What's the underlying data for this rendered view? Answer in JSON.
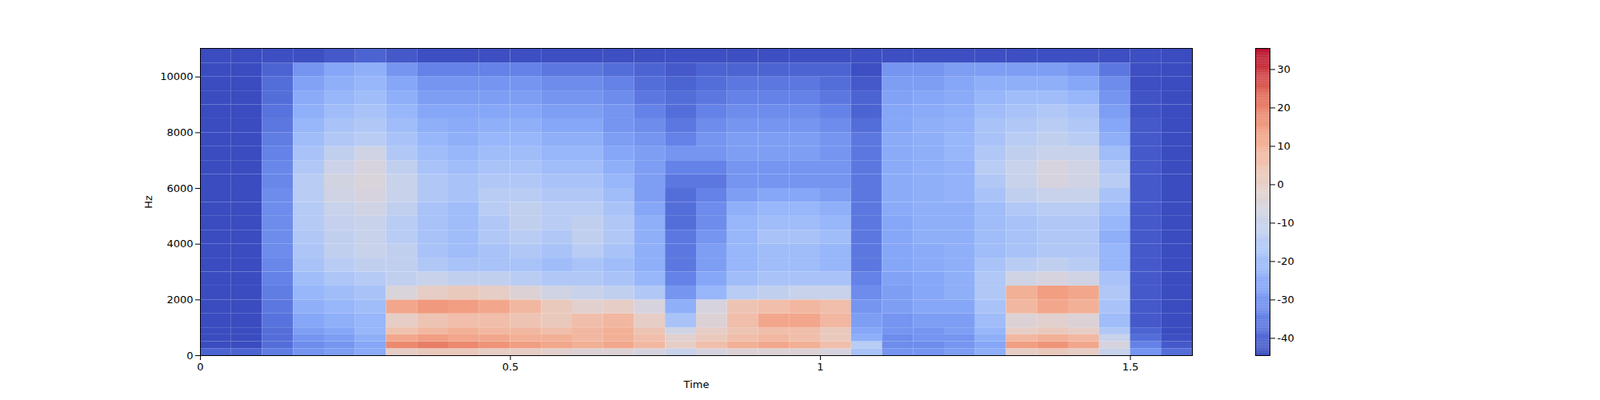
{
  "chart_data": {
    "type": "heatmap",
    "xlabel": "Time",
    "ylabel": "Hz",
    "xlim": [
      0,
      1.6
    ],
    "ylim": [
      0,
      11025
    ],
    "xticks": [
      0,
      0.5,
      1,
      1.5
    ],
    "yticks": [
      0,
      2000,
      4000,
      6000,
      8000,
      10000
    ],
    "color": "coolwarm",
    "colorbar": {
      "range": [
        -44.5,
        35.5
      ],
      "ticks": [
        -40,
        -30,
        -20,
        -10,
        0,
        10,
        20,
        30
      ]
    },
    "x_bins": [
      0,
      0.05,
      0.1,
      0.15,
      0.2,
      0.25,
      0.3,
      0.35,
      0.4,
      0.45,
      0.5,
      0.55,
      0.6,
      0.65,
      0.7,
      0.75,
      0.8,
      0.85,
      0.9,
      0.95,
      1.0,
      1.05,
      1.1,
      1.15,
      1.2,
      1.25,
      1.3,
      1.35,
      1.4,
      1.45,
      1.5,
      1.55,
      1.6
    ],
    "y_bins": [
      0,
      250,
      500,
      750,
      1000,
      1500,
      2000,
      2500,
      3000,
      3500,
      4000,
      4500,
      5000,
      5500,
      6000,
      6500,
      7000,
      7500,
      8000,
      8500,
      9000,
      9500,
      10000,
      10500,
      11025
    ],
    "z": [
      [
        -40,
        -44.5,
        -44.5,
        -44.5,
        -44.5,
        -44.5,
        -44.5,
        -44.5,
        -44.5,
        -44.5,
        -44.5,
        -44.5,
        -44.5,
        -44.5,
        -44.5,
        -44.5,
        -44.5,
        -44.5,
        -44.5,
        -44.5,
        -44.5,
        -44.5,
        -44.5,
        -44.5
      ],
      [
        -40,
        -44.5,
        -44.5,
        -44.5,
        -44.5,
        -44.5,
        -44.5,
        -44.5,
        -44.5,
        -44.5,
        -44.5,
        -44.5,
        -44.5,
        -44.5,
        -44.5,
        -44.5,
        -44.5,
        -44.5,
        -44.5,
        -44.5,
        -44.5,
        -44.5,
        -44.5,
        -44.5
      ],
      [
        -35,
        -38,
        -38,
        -38,
        -37,
        -36,
        -35,
        -34,
        -33,
        -32,
        -32,
        -32,
        -32,
        -32,
        -33,
        -33,
        -34,
        -35,
        -36,
        -37,
        -38,
        -38,
        -40,
        -44
      ],
      [
        -30,
        -32,
        -30,
        -28,
        -26,
        -24,
        -22,
        -20,
        -18,
        -17,
        -16,
        -15,
        -15,
        -14,
        -14,
        -16,
        -18,
        -20,
        -22,
        -24,
        -25,
        -27,
        -30,
        -44
      ],
      [
        -28,
        -30,
        -28,
        -26,
        -24,
        -22,
        -20,
        -17,
        -14,
        -12,
        -12,
        -11,
        -10,
        -8,
        -7,
        -9,
        -12,
        -16,
        -18,
        -20,
        -22,
        -24,
        -26,
        -42
      ],
      [
        -25,
        -26,
        -24,
        -22,
        -22,
        -20,
        -18,
        -15,
        -12,
        -10,
        -10,
        -10,
        -8,
        -6,
        -5,
        -6,
        -8,
        -14,
        -16,
        -18,
        -20,
        -22,
        -24,
        -40
      ],
      [
        0,
        18,
        12,
        5,
        0,
        12,
        -5,
        -12,
        -12,
        -12,
        -14,
        -14,
        -12,
        -10,
        -10,
        -12,
        -16,
        -18,
        -20,
        -22,
        -24,
        -26,
        -30,
        -42
      ],
      [
        2,
        20,
        14,
        8,
        4,
        15,
        0,
        -10,
        -16,
        -18,
        -18,
        -18,
        -18,
        -16,
        -16,
        -18,
        -20,
        -22,
        -24,
        -26,
        -28,
        -30,
        -34,
        -44
      ],
      [
        2,
        18,
        12,
        10,
        6,
        14,
        2,
        -12,
        -18,
        -20,
        -20,
        -20,
        -20,
        -18,
        -18,
        -20,
        -22,
        -24,
        -25,
        -26,
        -28,
        -30,
        -34,
        -44
      ],
      [
        0,
        16,
        12,
        8,
        6,
        12,
        0,
        -12,
        -18,
        -18,
        -16,
        -16,
        -14,
        -14,
        -16,
        -18,
        -20,
        -22,
        -24,
        -26,
        -28,
        -30,
        -34,
        -44
      ],
      [
        0,
        14,
        10,
        8,
        4,
        8,
        -4,
        -14,
        -18,
        -16,
        -14,
        -12,
        -12,
        -14,
        -16,
        -18,
        -20,
        -22,
        -24,
        -26,
        -28,
        -30,
        -34,
        -44
      ],
      [
        -2,
        12,
        10,
        6,
        2,
        2,
        -8,
        -16,
        -20,
        -18,
        -16,
        -14,
        -14,
        -16,
        -18,
        -20,
        -22,
        -24,
        -26,
        -28,
        -30,
        -32,
        -36,
        -44
      ],
      [
        -4,
        10,
        8,
        8,
        6,
        -2,
        -10,
        -16,
        -18,
        -14,
        -12,
        -12,
        -14,
        -16,
        -18,
        -20,
        -22,
        -24,
        -26,
        -28,
        -30,
        -32,
        -36,
        -44
      ],
      [
        -4,
        12,
        10,
        10,
        8,
        0,
        -12,
        -18,
        -20,
        -18,
        -16,
        -16,
        -18,
        -20,
        -22,
        -24,
        -26,
        -28,
        -30,
        -30,
        -32,
        -34,
        -38,
        -44
      ],
      [
        -6,
        8,
        6,
        4,
        0,
        -6,
        -16,
        -22,
        -24,
        -24,
        -24,
        -24,
        -26,
        -28,
        -28,
        -28,
        -28,
        -30,
        -32,
        -34,
        -36,
        -38,
        -40,
        -44
      ],
      [
        -10,
        0,
        -2,
        -8,
        -18,
        -24,
        -30,
        -34,
        -36,
        -36,
        -36,
        -38,
        -38,
        -38,
        -36,
        -34,
        -30,
        -34,
        -36,
        -38,
        -38,
        -40,
        -42,
        -44
      ],
      [
        -6,
        6,
        2,
        0,
        -4,
        -6,
        -22,
        -26,
        -28,
        -28,
        -30,
        -32,
        -32,
        -34,
        -36,
        -34,
        -30,
        -30,
        -32,
        -34,
        -36,
        -38,
        -40,
        -44
      ],
      [
        -4,
        10,
        6,
        4,
        6,
        4,
        -14,
        -20,
        -22,
        -22,
        -22,
        -22,
        -24,
        -28,
        -30,
        -30,
        -28,
        -28,
        -30,
        -32,
        -34,
        -36,
        -40,
        -44
      ],
      [
        -4,
        12,
        8,
        6,
        12,
        6,
        -12,
        -18,
        -20,
        -20,
        -18,
        -20,
        -22,
        -26,
        -30,
        -30,
        -28,
        -28,
        -30,
        -32,
        -34,
        -36,
        -40,
        -44
      ],
      [
        -4,
        10,
        6,
        6,
        12,
        8,
        -10,
        -18,
        -20,
        -20,
        -18,
        -20,
        -22,
        -26,
        -30,
        -30,
        -28,
        -28,
        -30,
        -32,
        -34,
        -36,
        -40,
        -44
      ],
      [
        -6,
        6,
        2,
        2,
        8,
        6,
        -10,
        -18,
        -22,
        -22,
        -20,
        -22,
        -24,
        -28,
        -30,
        -30,
        -30,
        -30,
        -32,
        -34,
        -36,
        -38,
        -40,
        -44
      ],
      [
        -18,
        -14,
        -24,
        -26,
        -28,
        -30,
        -32,
        -34,
        -36,
        -36,
        -36,
        -36,
        -36,
        -36,
        -36,
        -36,
        -36,
        -36,
        -38,
        -40,
        -40,
        -42,
        -44,
        -44
      ],
      [
        -30,
        -32,
        -32,
        -30,
        -30,
        -28,
        -28,
        -27,
        -26,
        -26,
        -26,
        -26,
        -25,
        -25,
        -25,
        -25,
        -25,
        -25,
        -26,
        -26,
        -27,
        -28,
        -30,
        -44
      ],
      [
        -30,
        -32,
        -30,
        -30,
        -28,
        -26,
        -26,
        -26,
        -25,
        -25,
        -24,
        -24,
        -24,
        -24,
        -24,
        -24,
        -24,
        -24,
        -24,
        -25,
        -26,
        -28,
        -30,
        -44
      ],
      [
        -28,
        -30,
        -30,
        -28,
        -28,
        -26,
        -24,
        -24,
        -24,
        -24,
        -24,
        -24,
        -24,
        -23,
        -23,
        -23,
        -22,
        -22,
        -23,
        -24,
        -25,
        -26,
        -28,
        -44
      ],
      [
        -24,
        -26,
        -24,
        -22,
        -20,
        -18,
        -16,
        -16,
        -18,
        -20,
        -20,
        -20,
        -20,
        -18,
        -16,
        -14,
        -16,
        -18,
        -18,
        -20,
        -22,
        -24,
        -28,
        -44
      ],
      [
        0,
        14,
        8,
        0,
        -4,
        8,
        10,
        -8,
        -14,
        -18,
        -18,
        -18,
        -16,
        -12,
        -10,
        -10,
        -12,
        -14,
        -16,
        -18,
        -20,
        -24,
        -28,
        -44
      ],
      [
        2,
        16,
        10,
        2,
        -2,
        12,
        14,
        -6,
        -12,
        -16,
        -16,
        -16,
        -14,
        -10,
        -6,
        -6,
        -10,
        -12,
        -14,
        -16,
        -20,
        -24,
        -28,
        -44
      ],
      [
        0,
        12,
        8,
        0,
        -4,
        10,
        12,
        -8,
        -14,
        -16,
        -16,
        -16,
        -14,
        -10,
        -8,
        -8,
        -10,
        -14,
        -16,
        -18,
        -22,
        -26,
        -30,
        -44
      ],
      [
        -10,
        -6,
        -10,
        -16,
        -20,
        -18,
        -16,
        -18,
        -22,
        -22,
        -24,
        -22,
        -20,
        -18,
        -14,
        -16,
        -20,
        -24,
        -26,
        -28,
        -30,
        -32,
        -36,
        -44
      ],
      [
        -30,
        -34,
        -38,
        -40,
        -42,
        -42,
        -42,
        -42,
        -42,
        -42,
        -42,
        -42,
        -42,
        -42,
        -42,
        -42,
        -42,
        -42,
        -42,
        -43,
        -43,
        -44,
        -44,
        -44
      ],
      [
        -38,
        -42,
        -44,
        -44.5,
        -44.5,
        -44.5,
        -44.5,
        -44.5,
        -44.5,
        -44.5,
        -44.5,
        -44.5,
        -44.5,
        -44.5,
        -44.5,
        -44.5,
        -44.5,
        -44.5,
        -44.5,
        -44.5,
        -44.5,
        -44.5,
        -44.5,
        -44.5
      ]
    ]
  }
}
